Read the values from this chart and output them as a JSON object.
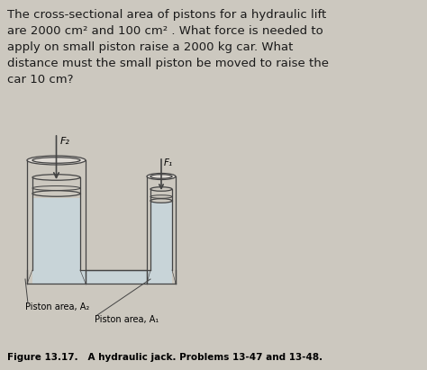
{
  "bg_color": "#ccc8bf",
  "text_color": "#1a1a1a",
  "title_lines": [
    "The cross-sectional area of pistons for a hydraulic lift",
    "are 2000 cm² and 100 cm² . What force is needed to",
    "apply on small piston raise a 2000 kg car. What",
    "distance must the small piston be moved to raise the",
    "car 10 cm?"
  ],
  "figure_caption": "Figure 13.17.   A hydraulic jack. Problems 13-47 and 13-48.",
  "label_piston_area2": "Piston area, A₂",
  "label_piston_area1": "Piston area, A₁",
  "label_F2": "F₂",
  "label_F1": "F₁",
  "lc": "#444444",
  "fc_fluid": "#c8d4d8",
  "fc_bg": "#ccc8bf",
  "fc_cyl": "#dedad4"
}
